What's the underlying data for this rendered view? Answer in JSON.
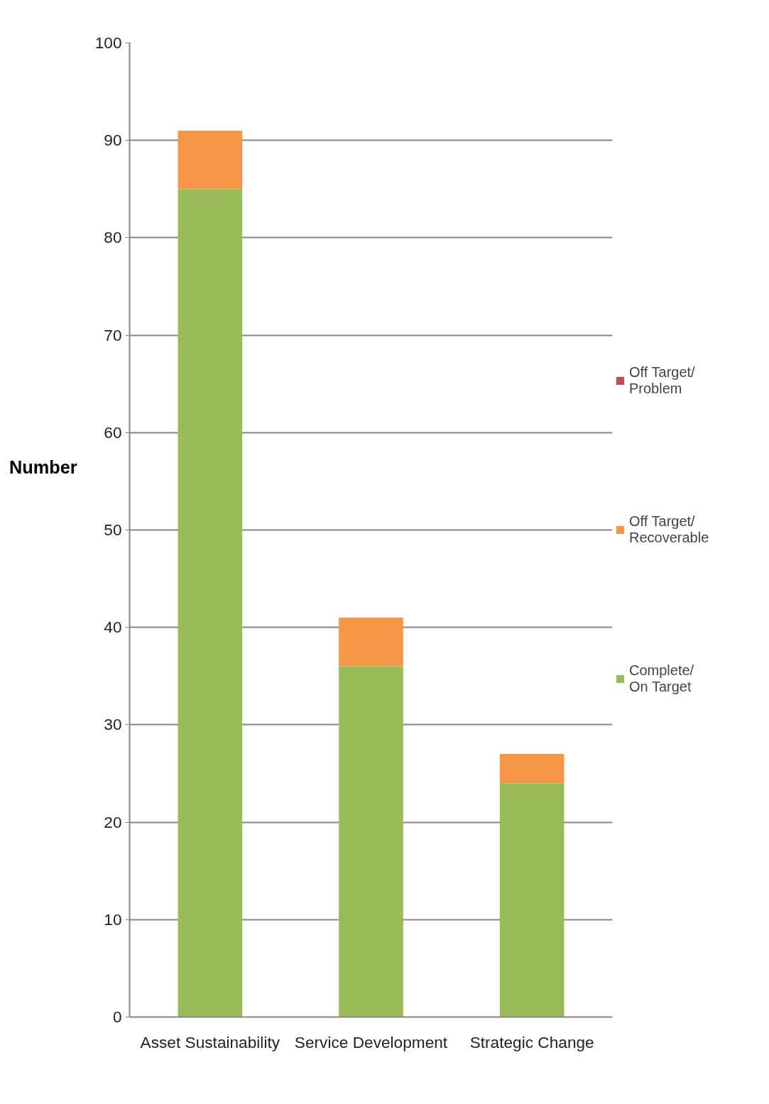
{
  "chart_data": {
    "type": "bar",
    "stacked": true,
    "ylabel": "Number",
    "categories": [
      "Asset Sustainability",
      "Service Development",
      "Strategic Change"
    ],
    "series": [
      {
        "name": "Complete/ On Target",
        "color": "#9bbb59",
        "values": [
          85,
          36,
          24
        ]
      },
      {
        "name": "Off Target/ Recoverable",
        "color": "#f79646",
        "values": [
          6,
          5,
          3
        ]
      },
      {
        "name": "Off Target/ Problem",
        "color": "#c0504d",
        "values": [
          0,
          0,
          0
        ]
      }
    ],
    "ylim": [
      0,
      100
    ],
    "yticks": [
      0,
      10,
      20,
      30,
      40,
      50,
      60,
      70,
      80,
      90,
      100
    ],
    "grid": "y",
    "legend": "right"
  }
}
